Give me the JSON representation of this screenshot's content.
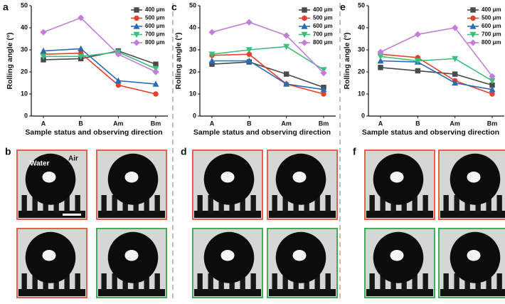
{
  "chart_data": [
    {
      "type": "line",
      "panel_label": "a",
      "x_label": "Sample status and observing direction",
      "y_label": "Rolling angle (°)",
      "categories": [
        "A",
        "B",
        "Am",
        "Bm"
      ],
      "ylim": [
        0,
        50
      ],
      "yticks": [
        0,
        10,
        20,
        30,
        40,
        50
      ],
      "series": [
        {
          "name": "400 μm",
          "color": "#4a4a4a",
          "marker": "square",
          "values": [
            25.5,
            26,
            29.5,
            23.5
          ]
        },
        {
          "name": "500 μm",
          "color": "#e5402c",
          "marker": "circle",
          "values": [
            28,
            28.5,
            14,
            10
          ]
        },
        {
          "name": "600 μm",
          "color": "#2b6cb0",
          "marker": "triangle-up",
          "values": [
            29.5,
            30.5,
            16,
            14.5
          ]
        },
        {
          "name": "700 μm",
          "color": "#3cbf7e",
          "marker": "triangle-down",
          "values": [
            27,
            27,
            29,
            21.5
          ]
        },
        {
          "name": "800 μm",
          "color": "#c27fd8",
          "marker": "diamond",
          "values": [
            38,
            44.5,
            28,
            20
          ]
        }
      ]
    },
    {
      "type": "line",
      "panel_label": "c",
      "x_label": "Sample status and observing direction",
      "y_label": "Rolling angle (°)",
      "categories": [
        "A",
        "B",
        "Am",
        "Bm"
      ],
      "ylim": [
        0,
        50
      ],
      "yticks": [
        0,
        10,
        20,
        30,
        40,
        50
      ],
      "series": [
        {
          "name": "400 μm",
          "color": "#4a4a4a",
          "marker": "square",
          "values": [
            23.5,
            24.5,
            19,
            13
          ]
        },
        {
          "name": "500 μm",
          "color": "#e5402c",
          "marker": "circle",
          "values": [
            27.5,
            28,
            14.5,
            10
          ]
        },
        {
          "name": "600 μm",
          "color": "#2b6cb0",
          "marker": "triangle-up",
          "values": [
            25,
            25,
            14.5,
            12
          ]
        },
        {
          "name": "700 μm",
          "color": "#3cbf7e",
          "marker": "triangle-down",
          "values": [
            28,
            30,
            31.5,
            21
          ]
        },
        {
          "name": "800 μm",
          "color": "#c27fd8",
          "marker": "diamond",
          "values": [
            38,
            42.5,
            36.5,
            19.5
          ]
        }
      ]
    },
    {
      "type": "line",
      "panel_label": "e",
      "x_label": "Sample status and observing direction",
      "y_label": "Rolling angle (°)",
      "categories": [
        "A",
        "B",
        "Am",
        "Bm"
      ],
      "ylim": [
        0,
        50
      ],
      "yticks": [
        0,
        10,
        20,
        30,
        40,
        50
      ],
      "series": [
        {
          "name": "400 μm",
          "color": "#4a4a4a",
          "marker": "square",
          "values": [
            22,
            20.5,
            19,
            14
          ]
        },
        {
          "name": "500 μm",
          "color": "#e5402c",
          "marker": "circle",
          "values": [
            28,
            26.5,
            16,
            10
          ]
        },
        {
          "name": "600 μm",
          "color": "#2b6cb0",
          "marker": "triangle-up",
          "values": [
            25,
            24.5,
            15,
            12
          ]
        },
        {
          "name": "700 μm",
          "color": "#3cbf7e",
          "marker": "triangle-down",
          "values": [
            27,
            25,
            26,
            16
          ]
        },
        {
          "name": "800 μm",
          "color": "#c27fd8",
          "marker": "diamond",
          "values": [
            29,
            37,
            40,
            18
          ]
        }
      ]
    }
  ],
  "photo_panels": [
    {
      "label": "b",
      "water": "Water",
      "air": "Air",
      "frames": [
        "#e8604c",
        "#e8604c",
        "#e8604c",
        "#3fae5e"
      ]
    },
    {
      "label": "d",
      "frames": [
        "#e8604c",
        "#e8604c",
        "#3fae5e",
        "#3fae5e"
      ]
    },
    {
      "label": "f",
      "frames": [
        "#e8604c",
        "#e8604c",
        "#3fae5e",
        "#3fae5e"
      ]
    }
  ]
}
